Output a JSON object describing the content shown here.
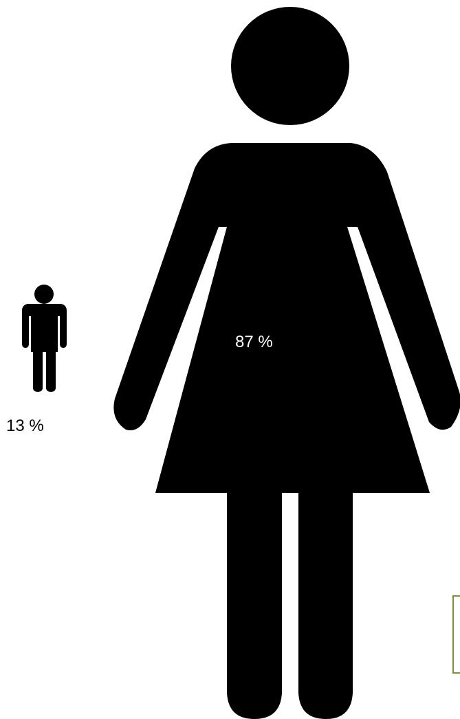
{
  "chart_data": {
    "type": "pictogram",
    "categories": [
      "female",
      "male"
    ],
    "values": [
      87,
      13
    ],
    "labels": [
      "87 %",
      "13 %"
    ],
    "icons": [
      "woman-icon",
      "man-icon"
    ],
    "colors": {
      "figure": "#000000",
      "label_on_figure": "#ffffff",
      "label_outside": "#000000",
      "box_border": "#77933c"
    }
  }
}
